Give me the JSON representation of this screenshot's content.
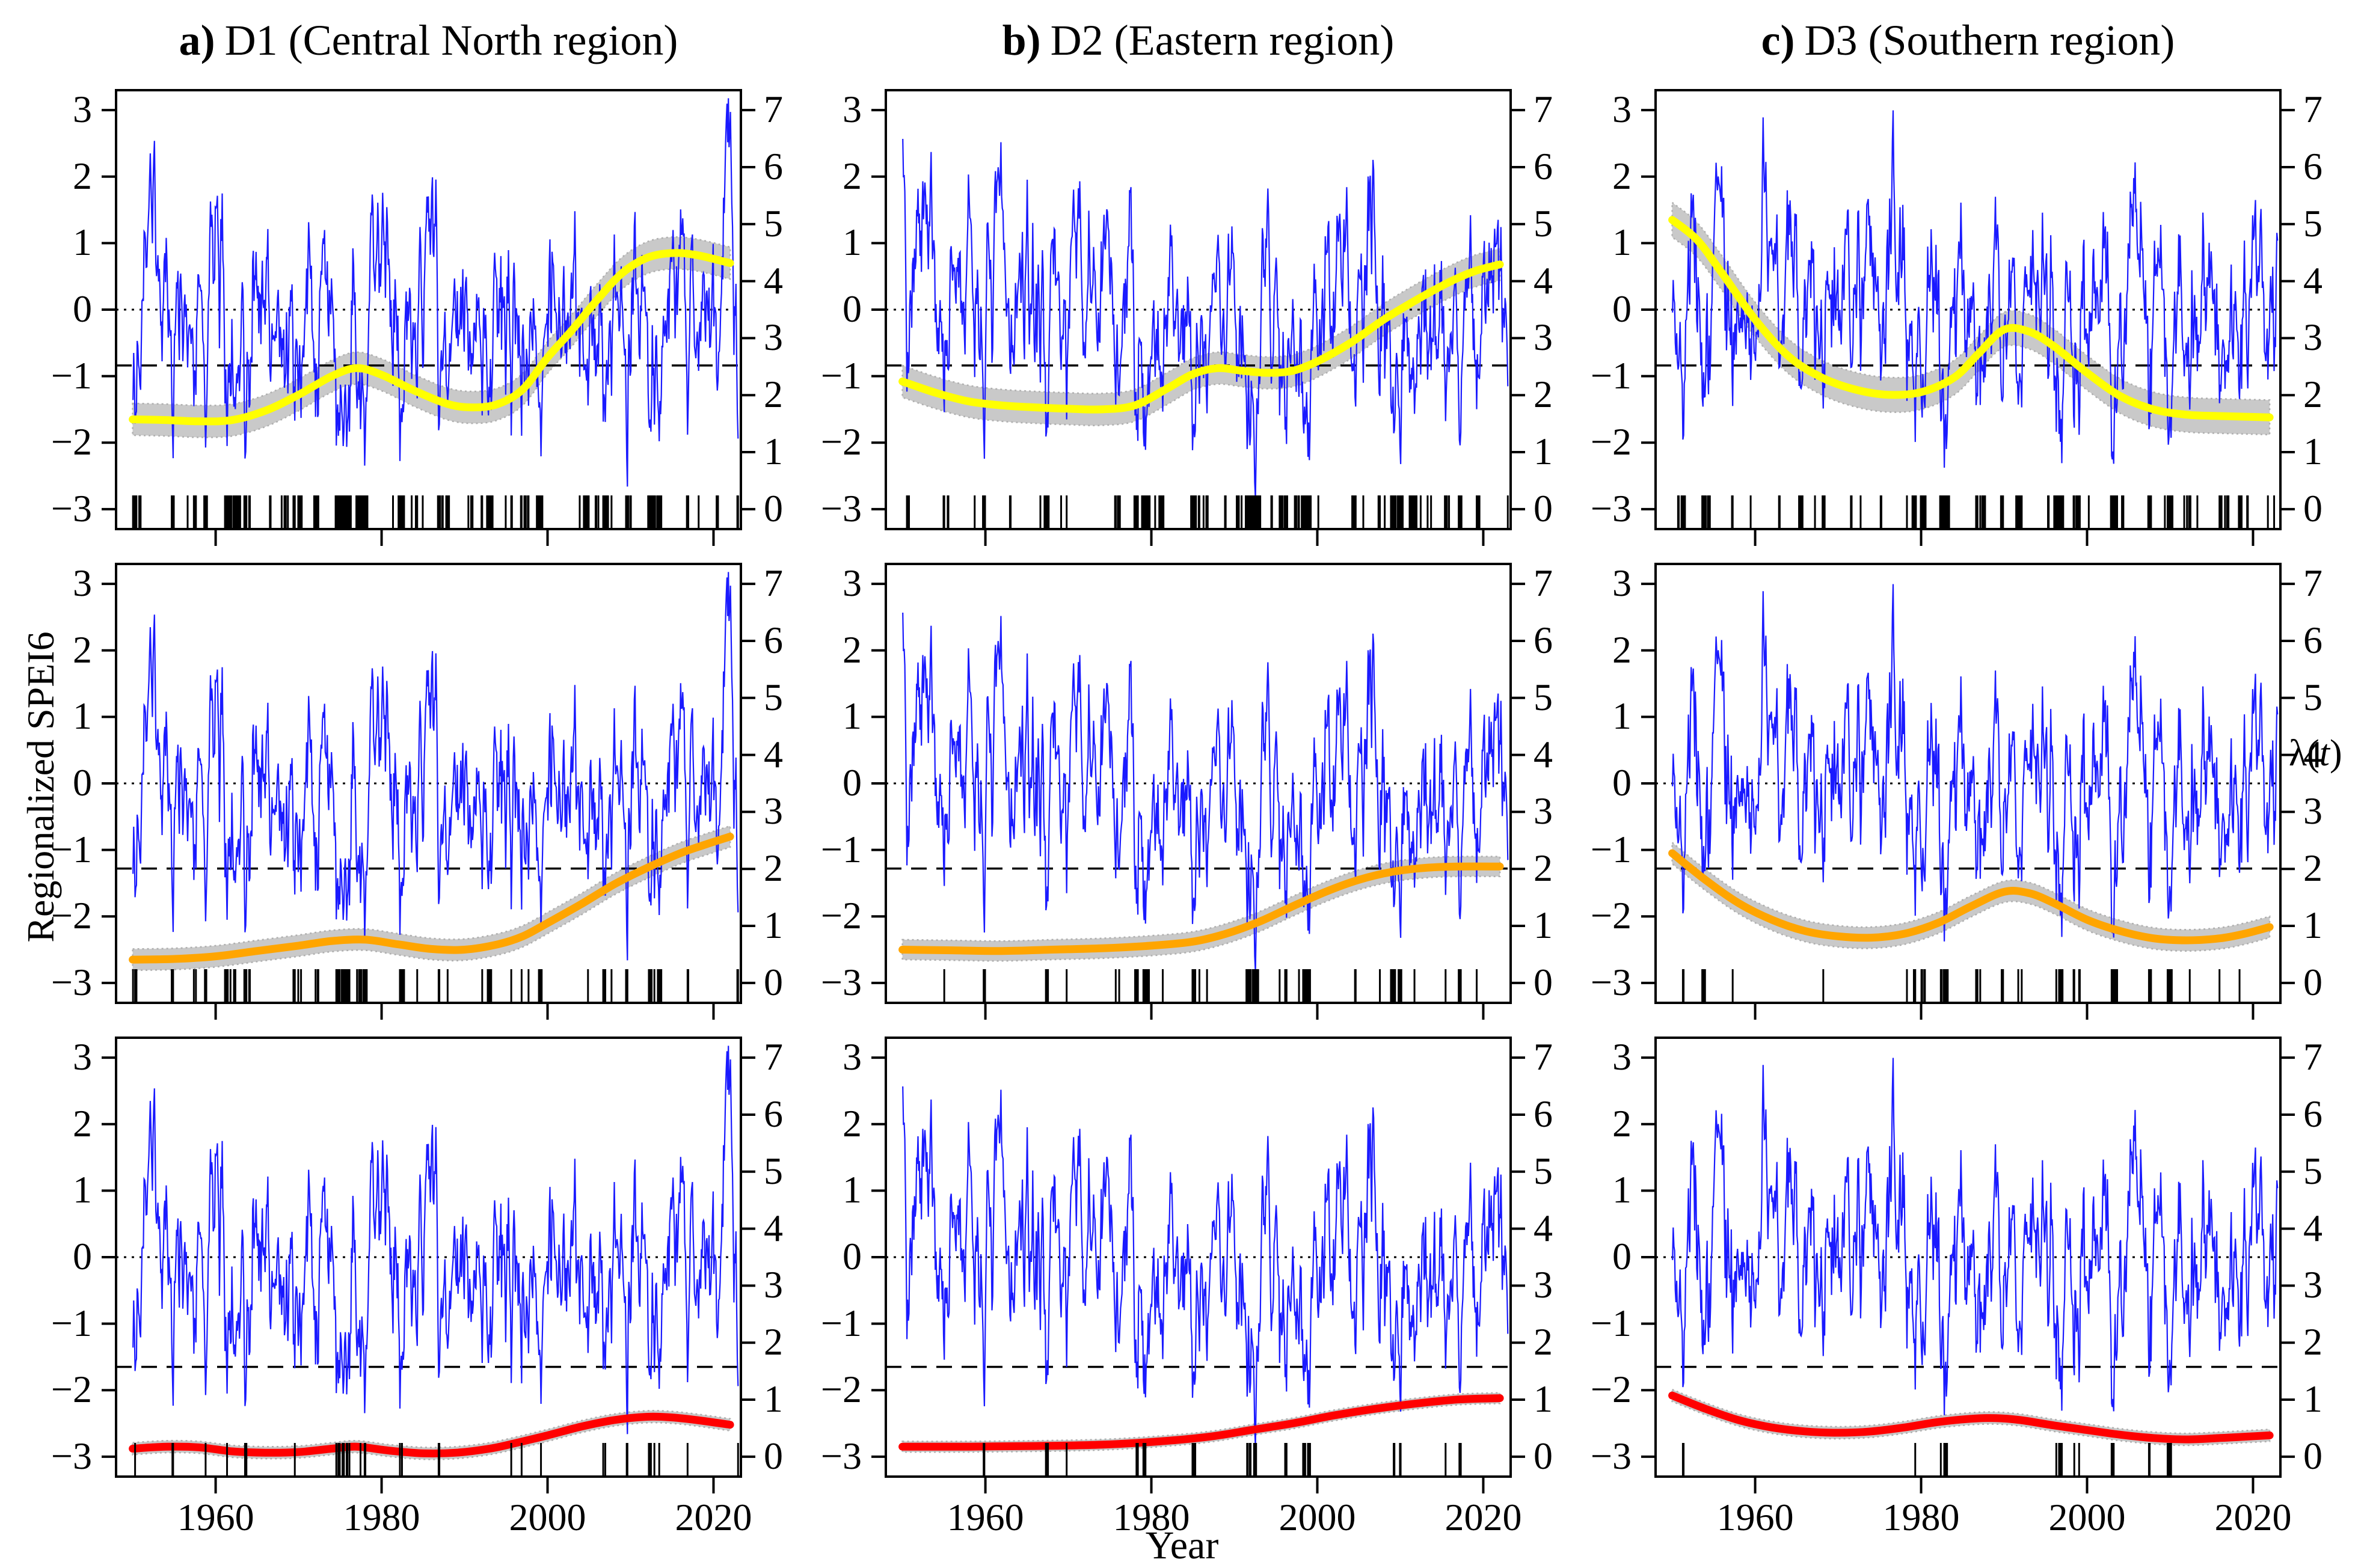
{
  "chart_data": {
    "type": "line",
    "axes": {
      "x": {
        "label": "Year",
        "domain": [
          1948,
          2023.3
        ],
        "ticks": [
          1960,
          1980,
          2000,
          2020
        ]
      },
      "y_left": {
        "label": "Regionalized SPEI6",
        "domain": [
          -3.3,
          3.3
        ],
        "ticks": [
          3,
          2,
          1,
          0,
          -1,
          -2,
          -3
        ]
      },
      "y_right": {
        "label": "λ(t)",
        "domain": [
          0,
          7
        ],
        "ticks": [
          7,
          6,
          5,
          4,
          3,
          2,
          1,
          0
        ]
      }
    },
    "lambda_label_parts": {
      "pre": "λ(",
      "var": "t",
      "post": ")"
    },
    "columns": [
      {
        "id": "D1",
        "panel_letter": "a)",
        "region_label": "D1 (Central North region)",
        "blue_seed": 20
      },
      {
        "id": "D2",
        "panel_letter": "b)",
        "region_label": "D2 (Eastern region)",
        "blue_seed": 7
      },
      {
        "id": "D3",
        "panel_letter": "c)",
        "region_label": "D3 (Southern region)",
        "blue_seed": 42
      }
    ],
    "rows": [
      {
        "id": "yellow",
        "trend_color": "#ffff00",
        "threshold": -0.84
      },
      {
        "id": "orange",
        "trend_color": "#ffa500",
        "threshold": -1.28
      },
      {
        "id": "red",
        "trend_color": "#ff0000",
        "threshold": -1.65
      }
    ],
    "zero_reference": 0,
    "band": {
      "fill": "#c9c9c9",
      "edge": "#b0b0b0"
    },
    "frame_color": "#000000",
    "blue_series_model": {
      "start_year": 1950,
      "end_year": 2023,
      "points_per_year": 12,
      "ar_coefficient": 0.85,
      "innovation_spread": 0.98,
      "clip": [
        -3.05,
        3.25
      ],
      "color": "#1a1aff"
    },
    "panels": [
      {
        "column": "D1",
        "row": "yellow",
        "trend_color": "#ffff00",
        "threshold": -0.84,
        "band_halfwidth": 0.24,
        "trend_years": [
          1950,
          1954,
          1958,
          1962,
          1966,
          1970,
          1974,
          1977,
          1980,
          1984,
          1988,
          1991,
          1994,
          1997,
          2000,
          2003,
          2006,
          2009,
          2012,
          2015,
          2018,
          2022
        ],
        "trend_spei": [
          -1.65,
          -1.66,
          -1.68,
          -1.66,
          -1.52,
          -1.28,
          -1.0,
          -0.88,
          -0.98,
          -1.22,
          -1.42,
          -1.47,
          -1.42,
          -1.2,
          -0.72,
          -0.3,
          0.15,
          0.55,
          0.78,
          0.85,
          0.82,
          0.7
        ]
      },
      {
        "column": "D2",
        "row": "yellow",
        "trend_color": "#ffff00",
        "threshold": -0.84,
        "band_halfwidth": 0.24,
        "trend_years": [
          1950,
          1954,
          1958,
          1962,
          1966,
          1970,
          1974,
          1978,
          1982,
          1985,
          1988,
          1991,
          1994,
          1997,
          2000,
          2004,
          2008,
          2012,
          2016,
          2019,
          2022
        ],
        "trend_spei": [
          -1.08,
          -1.25,
          -1.38,
          -1.44,
          -1.47,
          -1.49,
          -1.5,
          -1.44,
          -1.18,
          -0.97,
          -0.88,
          -0.92,
          -0.95,
          -0.92,
          -0.78,
          -0.5,
          -0.15,
          0.15,
          0.42,
          0.58,
          0.68
        ]
      },
      {
        "column": "D3",
        "row": "yellow",
        "trend_color": "#ffff00",
        "threshold": -0.84,
        "band_halfwidth": 0.26,
        "trend_years": [
          1950,
          1953,
          1956,
          1960,
          1964,
          1968,
          1972,
          1976,
          1980,
          1984,
          1987,
          1990,
          1993,
          1996,
          2000,
          2004,
          2008,
          2012,
          2016,
          2019,
          2022
        ],
        "trend_spei": [
          1.35,
          1.05,
          0.55,
          -0.15,
          -0.7,
          -1.02,
          -1.2,
          -1.28,
          -1.24,
          -1.02,
          -0.65,
          -0.3,
          -0.33,
          -0.55,
          -0.95,
          -1.3,
          -1.5,
          -1.58,
          -1.6,
          -1.61,
          -1.62
        ]
      },
      {
        "column": "D1",
        "row": "orange",
        "trend_color": "#ffa500",
        "threshold": -1.28,
        "band_halfwidth": 0.16,
        "trend_years": [
          1950,
          1955,
          1960,
          1965,
          1970,
          1974,
          1978,
          1982,
          1986,
          1990,
          1994,
          1997,
          2000,
          2004,
          2008,
          2012,
          2016,
          2019,
          2022
        ],
        "trend_spei": [
          -2.65,
          -2.64,
          -2.6,
          -2.52,
          -2.44,
          -2.37,
          -2.35,
          -2.42,
          -2.49,
          -2.5,
          -2.42,
          -2.3,
          -2.1,
          -1.82,
          -1.52,
          -1.27,
          -1.05,
          -0.92,
          -0.8
        ]
      },
      {
        "column": "D2",
        "row": "orange",
        "trend_color": "#ffa500",
        "threshold": -1.28,
        "band_halfwidth": 0.15,
        "trend_years": [
          1950,
          1956,
          1962,
          1968,
          1974,
          1980,
          1985,
          1989,
          1993,
          1997,
          2001,
          2005,
          2009,
          2013,
          2017,
          2022
        ],
        "trend_spei": [
          -2.5,
          -2.51,
          -2.52,
          -2.5,
          -2.48,
          -2.44,
          -2.38,
          -2.26,
          -2.08,
          -1.85,
          -1.63,
          -1.45,
          -1.33,
          -1.27,
          -1.25,
          -1.25
        ]
      },
      {
        "column": "D3",
        "row": "orange",
        "trend_color": "#ffa500",
        "threshold": -1.28,
        "band_halfwidth": 0.16,
        "trend_years": [
          1950,
          1954,
          1958,
          1962,
          1966,
          1970,
          1974,
          1978,
          1982,
          1986,
          1990,
          1993,
          1996,
          2000,
          2004,
          2008,
          2012,
          2016,
          2019,
          2022
        ],
        "trend_spei": [
          -1.05,
          -1.45,
          -1.8,
          -2.05,
          -2.22,
          -2.3,
          -2.32,
          -2.26,
          -2.1,
          -1.85,
          -1.63,
          -1.65,
          -1.8,
          -2.05,
          -2.22,
          -2.33,
          -2.36,
          -2.33,
          -2.26,
          -2.16
        ]
      },
      {
        "column": "D1",
        "row": "red",
        "trend_color": "#ff0000",
        "threshold": -1.65,
        "band_halfwidth": 0.09,
        "trend_years": [
          1950,
          1954,
          1958,
          1962,
          1966,
          1970,
          1974,
          1977,
          1981,
          1985,
          1989,
          1993,
          1996,
          2000,
          2004,
          2008,
          2012,
          2015,
          2018,
          2022
        ],
        "trend_spei": [
          -2.88,
          -2.85,
          -2.86,
          -2.92,
          -2.94,
          -2.93,
          -2.88,
          -2.85,
          -2.91,
          -2.95,
          -2.94,
          -2.88,
          -2.8,
          -2.68,
          -2.55,
          -2.45,
          -2.4,
          -2.41,
          -2.45,
          -2.52
        ]
      },
      {
        "column": "D2",
        "row": "red",
        "trend_color": "#ff0000",
        "threshold": -1.65,
        "band_halfwidth": 0.08,
        "trend_years": [
          1950,
          1958,
          1966,
          1974,
          1981,
          1987,
          1992,
          1997,
          2002,
          2007,
          2012,
          2017,
          2022
        ],
        "trend_spei": [
          -2.85,
          -2.85,
          -2.84,
          -2.82,
          -2.77,
          -2.7,
          -2.6,
          -2.5,
          -2.38,
          -2.28,
          -2.2,
          -2.14,
          -2.12
        ]
      },
      {
        "column": "D3",
        "row": "red",
        "trend_color": "#ff0000",
        "threshold": -1.65,
        "band_halfwidth": 0.09,
        "trend_years": [
          1950,
          1954,
          1958,
          1962,
          1966,
          1970,
          1974,
          1978,
          1982,
          1986,
          1989,
          1992,
          1996,
          2000,
          2004,
          2008,
          2012,
          2016,
          2019,
          2022
        ],
        "trend_spei": [
          -2.08,
          -2.28,
          -2.45,
          -2.56,
          -2.62,
          -2.64,
          -2.62,
          -2.56,
          -2.48,
          -2.43,
          -2.42,
          -2.45,
          -2.53,
          -2.6,
          -2.67,
          -2.72,
          -2.74,
          -2.72,
          -2.7,
          -2.68
        ]
      }
    ]
  }
}
